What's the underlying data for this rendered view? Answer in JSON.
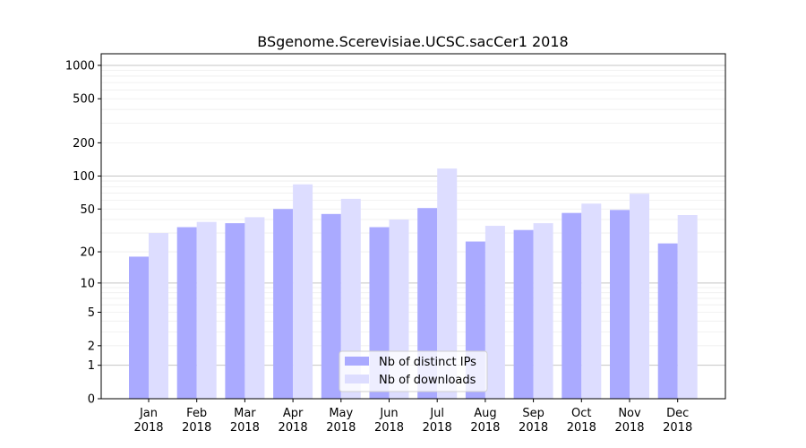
{
  "chart_data": {
    "type": "bar",
    "title": "BSgenome.Scerevisiae.UCSC.sacCer1 2018",
    "xlabel": "",
    "ylabel": "",
    "yscale": "log10(1+y)",
    "ylim": [
      0,
      1200
    ],
    "yticks": [
      0,
      1,
      2,
      5,
      10,
      20,
      50,
      100,
      200,
      500,
      1000
    ],
    "categories": [
      "Jan\n2018",
      "Feb\n2018",
      "Mar\n2018",
      "Apr\n2018",
      "May\n2018",
      "Jun\n2018",
      "Jul\n2018",
      "Aug\n2018",
      "Sep\n2018",
      "Oct\n2018",
      "Nov\n2018",
      "Dec\n2018"
    ],
    "series": [
      {
        "name": "Nb of distinct IPs",
        "color": "#aaaaff",
        "values": [
          18,
          34,
          37,
          50,
          45,
          34,
          51,
          25,
          32,
          46,
          49,
          24
        ]
      },
      {
        "name": "Nb of downloads",
        "color": "#ddddff",
        "values": [
          30,
          38,
          42,
          84,
          62,
          40,
          117,
          35,
          37,
          56,
          69,
          44
        ]
      }
    ],
    "grid": true,
    "legend": "bottom-center"
  }
}
